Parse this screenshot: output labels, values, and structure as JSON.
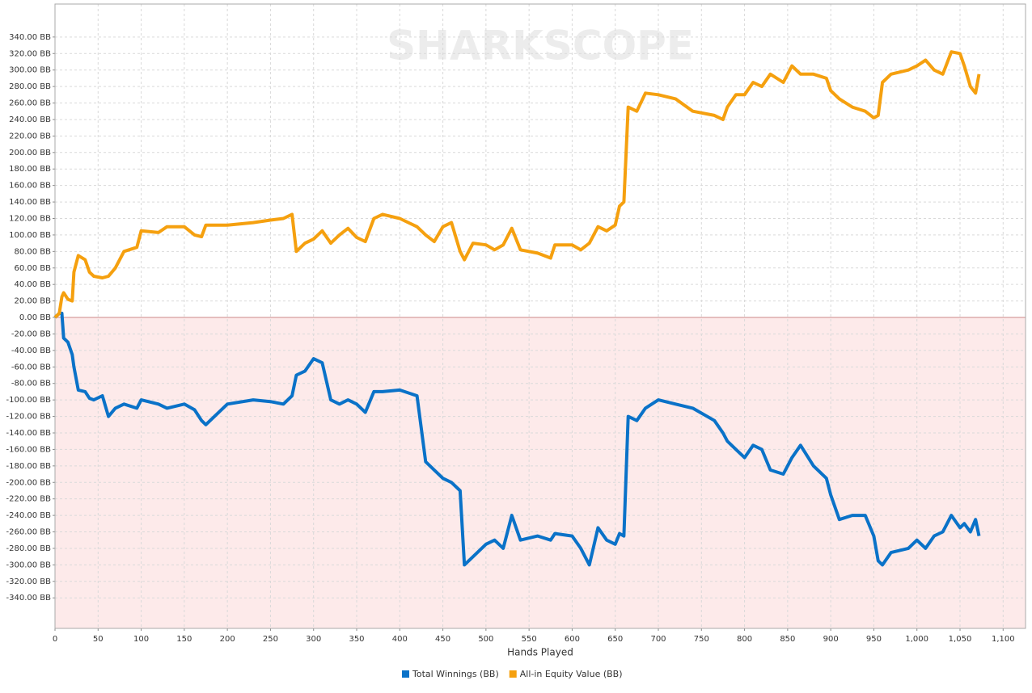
{
  "chart_data": {
    "type": "line",
    "watermark": "SHARKSCOPE",
    "x_label": "Hands Played",
    "x": [
      0,
      5,
      8,
      10,
      15,
      20,
      22,
      27,
      35,
      40,
      45,
      55,
      62,
      70,
      80,
      95,
      100,
      120,
      130,
      150,
      162,
      170,
      175,
      200,
      230,
      250,
      265,
      275,
      280,
      290,
      300,
      310,
      320,
      330,
      340,
      350,
      360,
      370,
      380,
      400,
      420,
      430,
      440,
      450,
      460,
      470,
      475,
      485,
      500,
      510,
      520,
      530,
      540,
      560,
      575,
      580,
      600,
      610,
      620,
      630,
      640,
      650,
      655,
      660,
      665,
      675,
      685,
      700,
      720,
      740,
      765,
      775,
      780,
      790,
      800,
      810,
      820,
      830,
      845,
      855,
      865,
      880,
      895,
      900,
      910,
      925,
      940,
      950,
      955,
      960,
      970,
      990,
      1000,
      1010,
      1020,
      1030,
      1040,
      1050,
      1055,
      1062,
      1068,
      1072
    ],
    "series": [
      {
        "name": "Total Winnings (BB)",
        "color": "#0a72c8",
        "values": [
          0,
          5,
          5,
          -25,
          -30,
          -45,
          -60,
          -88,
          -90,
          -98,
          -100,
          -95,
          -120,
          -110,
          -105,
          -110,
          -100,
          -105,
          -110,
          -105,
          -112,
          -125,
          -130,
          -105,
          -100,
          -102,
          -105,
          -95,
          -70,
          -65,
          -50,
          -55,
          -100,
          -105,
          -100,
          -105,
          -115,
          -90,
          -90,
          -88,
          -95,
          -175,
          -185,
          -195,
          -200,
          -210,
          -300,
          -290,
          -275,
          -270,
          -280,
          -240,
          -270,
          -265,
          -270,
          -262,
          -265,
          -280,
          -300,
          -255,
          -270,
          -275,
          -262,
          -265,
          -120,
          -125,
          -110,
          -100,
          -105,
          -110,
          -125,
          -140,
          -150,
          -160,
          -170,
          -155,
          -160,
          -185,
          -190,
          -170,
          -155,
          -180,
          -195,
          -215,
          -245,
          -240,
          -240,
          -265,
          -295,
          -300,
          -285,
          -280,
          -270,
          -280,
          -265,
          -260,
          -240,
          -255,
          -250,
          -260,
          -245,
          -265
        ]
      },
      {
        "name": "All-in Equity Value (BB)",
        "color": "#f5a00f",
        "values": [
          0,
          5,
          25,
          30,
          22,
          20,
          55,
          75,
          70,
          55,
          50,
          48,
          50,
          60,
          80,
          85,
          105,
          103,
          110,
          110,
          100,
          98,
          112,
          112,
          115,
          118,
          120,
          125,
          80,
          90,
          95,
          105,
          90,
          100,
          108,
          97,
          92,
          120,
          125,
          120,
          110,
          100,
          92,
          110,
          115,
          80,
          70,
          90,
          88,
          82,
          88,
          108,
          82,
          78,
          72,
          88,
          88,
          82,
          90,
          110,
          105,
          112,
          135,
          140,
          255,
          250,
          272,
          270,
          265,
          250,
          245,
          240,
          255,
          270,
          270,
          285,
          280,
          295,
          285,
          305,
          295,
          295,
          290,
          275,
          265,
          255,
          250,
          242,
          245,
          285,
          295,
          300,
          305,
          312,
          300,
          295,
          322,
          320,
          305,
          280,
          272,
          295
        ]
      }
    ],
    "xlim": [
      0,
      1126
    ],
    "ylim": [
      -377,
      380
    ],
    "xticks": [
      0,
      50,
      100,
      150,
      200,
      250,
      300,
      350,
      400,
      450,
      500,
      550,
      600,
      650,
      700,
      750,
      800,
      850,
      900,
      950,
      {
        "value": 1000,
        "label": "1,000"
      },
      {
        "value": 1050,
        "label": "1,050"
      },
      {
        "value": 1100,
        "label": "1,100"
      }
    ],
    "yticks": [
      {
        "value": 340,
        "label": "340.00 BB"
      },
      {
        "value": 320,
        "label": "320.00 BB"
      },
      {
        "value": 300,
        "label": "300.00 BB"
      },
      {
        "value": 280,
        "label": "280.00 BB"
      },
      {
        "value": 260,
        "label": "260.00 BB"
      },
      {
        "value": 240,
        "label": "240.00 BB"
      },
      {
        "value": 220,
        "label": "220.00 BB"
      },
      {
        "value": 200,
        "label": "200.00 BB"
      },
      {
        "value": 180,
        "label": "180.00 BB"
      },
      {
        "value": 160,
        "label": "160.00 BB"
      },
      {
        "value": 140,
        "label": "140.00 BB"
      },
      {
        "value": 120,
        "label": "120.00 BB"
      },
      {
        "value": 100,
        "label": "100.00 BB"
      },
      {
        "value": 80,
        "label": "80.00 BB"
      },
      {
        "value": 60,
        "label": "60.00 BB"
      },
      {
        "value": 40,
        "label": "40.00 BB"
      },
      {
        "value": 20,
        "label": "20.00 BB"
      },
      {
        "value": 0,
        "label": "0.00 BB"
      },
      {
        "value": -20,
        "label": "-20.00 BB"
      },
      {
        "value": -40,
        "label": "-40.00 BB"
      },
      {
        "value": -60,
        "label": "-60.00 BB"
      },
      {
        "value": -80,
        "label": "-80.00 BB"
      },
      {
        "value": -100,
        "label": "-100.00 BB"
      },
      {
        "value": -120,
        "label": "-120.00 BB"
      },
      {
        "value": -140,
        "label": "-140.00 BB"
      },
      {
        "value": -160,
        "label": "-160.00 BB"
      },
      {
        "value": -180,
        "label": "-180.00 BB"
      },
      {
        "value": -200,
        "label": "-200.00 BB"
      },
      {
        "value": -220,
        "label": "-220.00 BB"
      },
      {
        "value": -240,
        "label": "-240.00 BB"
      },
      {
        "value": -260,
        "label": "-260.00 BB"
      },
      {
        "value": -280,
        "label": "-280.00 BB"
      },
      {
        "value": -300,
        "label": "-300.00 BB"
      },
      {
        "value": -320,
        "label": "-320.00 BB"
      },
      {
        "value": -340,
        "label": "-340.00 BB"
      }
    ],
    "grid": true
  }
}
